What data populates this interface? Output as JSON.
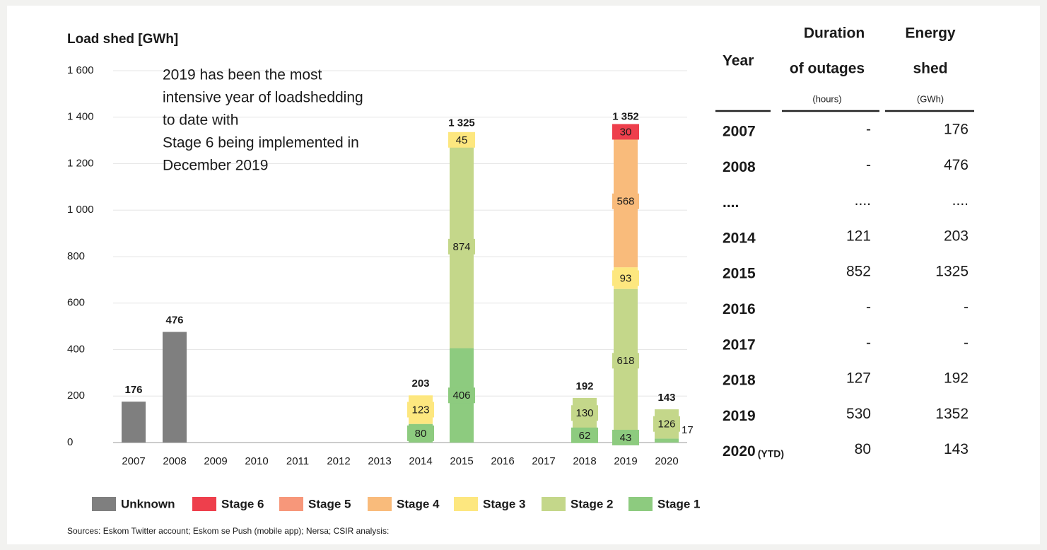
{
  "chart_data": {
    "type": "stacked_bar",
    "title": "Load shed [GWh]",
    "annotation": [
      "2019 has been the most",
      "intensive year of loadshedding",
      "to date with",
      "Stage 6 being implemented in",
      "December 2019"
    ],
    "categories": [
      "2007",
      "2008",
      "2009",
      "2010",
      "2011",
      "2012",
      "2013",
      "2014",
      "2015",
      "2016",
      "2017",
      "2018",
      "2019",
      "2020"
    ],
    "series": [
      {
        "name": "Unknown",
        "color": "#7f7f7f",
        "values": [
          176,
          476,
          null,
          null,
          null,
          null,
          null,
          null,
          null,
          null,
          null,
          null,
          null,
          null
        ]
      },
      {
        "name": "Stage 6",
        "color": "#ee3f4c",
        "values": [
          null,
          null,
          null,
          null,
          null,
          null,
          null,
          null,
          null,
          null,
          null,
          null,
          30,
          null
        ]
      },
      {
        "name": "Stage 5",
        "color": "#f7977a",
        "values": [
          null,
          null,
          null,
          null,
          null,
          null,
          null,
          null,
          null,
          null,
          null,
          null,
          null,
          null
        ]
      },
      {
        "name": "Stage 4",
        "color": "#f9bb7b",
        "values": [
          null,
          null,
          null,
          null,
          null,
          null,
          null,
          null,
          null,
          null,
          null,
          null,
          568,
          null
        ]
      },
      {
        "name": "Stage 3",
        "color": "#fde77f",
        "values": [
          null,
          null,
          null,
          null,
          null,
          null,
          null,
          123,
          45,
          null,
          null,
          null,
          93,
          null
        ]
      },
      {
        "name": "Stage 2",
        "color": "#c4d78a",
        "values": [
          null,
          null,
          null,
          null,
          null,
          null,
          null,
          null,
          874,
          null,
          null,
          130,
          618,
          126
        ]
      },
      {
        "name": "Stage 1",
        "color": "#8dcb7f",
        "values": [
          null,
          null,
          null,
          null,
          null,
          null,
          null,
          80,
          406,
          null,
          null,
          62,
          43,
          17
        ]
      }
    ],
    "totals": {
      "values": [
        176,
        476,
        null,
        null,
        null,
        null,
        null,
        203,
        1325,
        null,
        null,
        192,
        1352,
        143
      ],
      "value_labels": [
        "176",
        "476",
        null,
        null,
        null,
        null,
        null,
        "203",
        "1 325",
        null,
        null,
        "192",
        "1 352",
        "143"
      ]
    },
    "ylim": [
      0,
      1600
    ],
    "yticks": [
      0,
      200,
      400,
      600,
      800,
      {
        "value": 1000,
        "label": "1 000"
      },
      {
        "value": 1200,
        "label": "1 200"
      },
      {
        "value": 1400,
        "label": "1 400"
      },
      {
        "value": 1600,
        "label": "1 600"
      }
    ],
    "grid": true,
    "legend": "bottom",
    "source": "Sources: Eskom Twitter account; Eskom se Push (mobile app); Nersa; CSIR analysis:"
  },
  "table": {
    "headers": {
      "year": "Year",
      "duration": [
        "Duration",
        "of outages",
        "(hours)"
      ],
      "energy": [
        "Energy",
        "shed",
        "(GWh)"
      ]
    },
    "rows": [
      [
        "2007",
        "-",
        "176"
      ],
      [
        "2008",
        "-",
        "476"
      ],
      [
        "....",
        "....",
        "...."
      ],
      [
        "2014",
        "121",
        "203"
      ],
      [
        "2015",
        "852",
        "1325"
      ],
      [
        "2016",
        "-",
        "-"
      ],
      [
        "2017",
        "-",
        "-"
      ],
      [
        "2018",
        "127",
        "192"
      ],
      [
        "2019",
        "530",
        "1352"
      ],
      [
        "2020",
        "80",
        "143"
      ]
    ],
    "note": "(YTD)"
  }
}
